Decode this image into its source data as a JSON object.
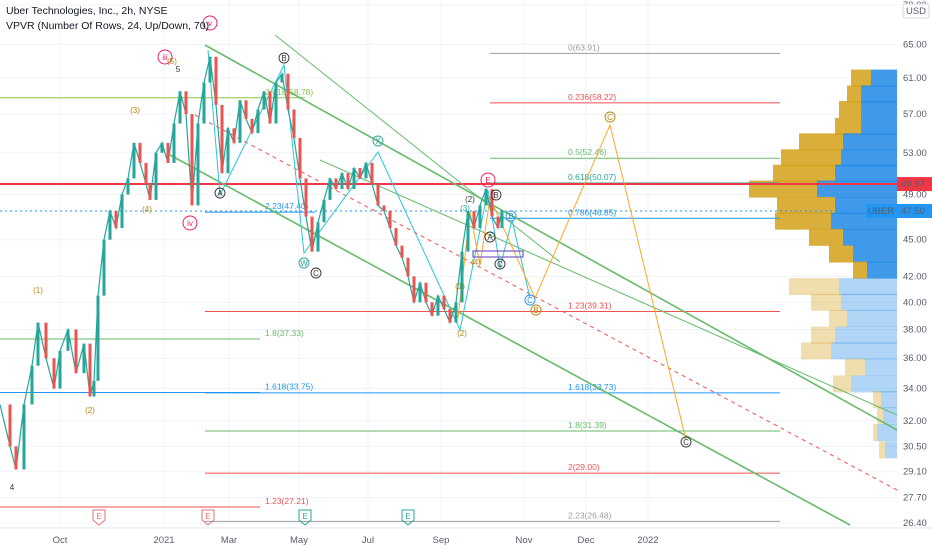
{
  "header": {
    "title": "Uber Technologies, Inc., 2h, NYSE",
    "indicator": "VPVR (Number Of Rows, 24, Up/Down, 70)"
  },
  "chart_data": {
    "type": "line",
    "symbol": "UBER",
    "currency": "USD",
    "x_ticks": [
      "Oct",
      "2021",
      "Mar",
      "May",
      "Jul",
      "Sep",
      "Nov",
      "Dec",
      "2022"
    ],
    "y_ticks": [
      70.0,
      65.0,
      61.0,
      57.0,
      53.0,
      49.0,
      45.0,
      42.0,
      40.0,
      38.0,
      36.0,
      34.0,
      32.0,
      30.5,
      29.1,
      27.7,
      26.4
    ],
    "ylim": [
      26.4,
      70.0
    ],
    "y_scale": "log",
    "last_price": {
      "label": "UBER",
      "value": "47.50"
    },
    "red_level": {
      "value": "49.97"
    },
    "price_path": [
      [
        0,
        33.0
      ],
      [
        10,
        30.5
      ],
      [
        16,
        29.2
      ],
      [
        24,
        33.0
      ],
      [
        32,
        35.5
      ],
      [
        38,
        38.5
      ],
      [
        46,
        36.0
      ],
      [
        54,
        34.0
      ],
      [
        60,
        36.5
      ],
      [
        68,
        38.0
      ],
      [
        76,
        35.0
      ],
      [
        84,
        37.0
      ],
      [
        90,
        33.5
      ],
      [
        94,
        34.5
      ],
      [
        98,
        40.5
      ],
      [
        104,
        45.0
      ],
      [
        110,
        47.5
      ],
      [
        116,
        46.0
      ],
      [
        122,
        49.0
      ],
      [
        128,
        50.5
      ],
      [
        134,
        54.0
      ],
      [
        140,
        52.0
      ],
      [
        146,
        50.0
      ],
      [
        150,
        48.5
      ],
      [
        156,
        53.0
      ],
      [
        162,
        54.0
      ],
      [
        168,
        52.0
      ],
      [
        174,
        56.0
      ],
      [
        180,
        59.5
      ],
      [
        186,
        57.0
      ],
      [
        192,
        48.0
      ],
      [
        198,
        56.0
      ],
      [
        204,
        60.5
      ],
      [
        210,
        63.5
      ],
      [
        216,
        58.0
      ],
      [
        222,
        51.0
      ],
      [
        228,
        55.5
      ],
      [
        234,
        54.0
      ],
      [
        240,
        58.5
      ],
      [
        246,
        56.5
      ],
      [
        252,
        55.0
      ],
      [
        258,
        57.5
      ],
      [
        264,
        59.5
      ],
      [
        270,
        56.0
      ],
      [
        276,
        60.5
      ],
      [
        282,
        61.5
      ],
      [
        288,
        57.5
      ],
      [
        294,
        54.5
      ],
      [
        300,
        50.5
      ],
      [
        306,
        47.0
      ],
      [
        312,
        44.0
      ],
      [
        318,
        46.5
      ],
      [
        324,
        48.5
      ],
      [
        330,
        50.5
      ],
      [
        336,
        49.5
      ],
      [
        342,
        51.0
      ],
      [
        348,
        49.5
      ],
      [
        354,
        51.5
      ],
      [
        360,
        50.5
      ],
      [
        366,
        52.0
      ],
      [
        372,
        50.0
      ],
      [
        378,
        48.0
      ],
      [
        384,
        47.5
      ],
      [
        390,
        46.0
      ],
      [
        396,
        44.5
      ],
      [
        402,
        43.5
      ],
      [
        408,
        42.0
      ],
      [
        414,
        40.0
      ],
      [
        420,
        41.5
      ],
      [
        426,
        40.0
      ],
      [
        432,
        39.0
      ],
      [
        438,
        40.5
      ],
      [
        444,
        39.5
      ],
      [
        450,
        38.5
      ],
      [
        456,
        40.0
      ],
      [
        462,
        44.0
      ],
      [
        468,
        47.5
      ],
      [
        474,
        46.0
      ],
      [
        480,
        48.0
      ],
      [
        486,
        49.5
      ],
      [
        492,
        47.0
      ],
      [
        498,
        46.0
      ],
      [
        502,
        47.5
      ]
    ],
    "vpvr": [
      {
        "price": 61.0,
        "up": 20,
        "down": 26
      },
      {
        "price": 59.2,
        "up": 14,
        "down": 36
      },
      {
        "price": 57.5,
        "up": 22,
        "down": 36
      },
      {
        "price": 55.7,
        "up": 26,
        "down": 36
      },
      {
        "price": 54.1,
        "up": 44,
        "down": 54
      },
      {
        "price": 52.5,
        "up": 60,
        "down": 56
      },
      {
        "price": 51.0,
        "up": 62,
        "down": 62
      },
      {
        "price": 49.5,
        "up": 68,
        "down": 80
      },
      {
        "price": 48.0,
        "up": 58,
        "down": 62
      },
      {
        "price": 46.6,
        "up": 56,
        "down": 66
      },
      {
        "price": 45.2,
        "up": 34,
        "down": 54
      },
      {
        "price": 43.8,
        "up": 24,
        "down": 44
      },
      {
        "price": 42.5,
        "up": 14,
        "down": 30
      },
      {
        "price": 41.2,
        "up": 50,
        "down": 58
      },
      {
        "price": 40.0,
        "up": 30,
        "down": 56
      },
      {
        "price": 38.8,
        "up": 18,
        "down": 50
      },
      {
        "price": 37.6,
        "up": 24,
        "down": 62
      },
      {
        "price": 36.5,
        "up": 30,
        "down": 66
      },
      {
        "price": 35.4,
        "up": 20,
        "down": 32
      },
      {
        "price": 34.3,
        "up": 18,
        "down": 46
      },
      {
        "price": 33.3,
        "up": 8,
        "down": 16
      },
      {
        "price": 32.3,
        "up": 6,
        "down": 14
      },
      {
        "price": 31.3,
        "up": 4,
        "down": 20
      },
      {
        "price": 30.3,
        "up": 6,
        "down": 12
      }
    ],
    "levels": [
      {
        "label": "0(63.91)",
        "price": 63.91,
        "x0": 490,
        "x1": 780,
        "color": "#9e9e9e",
        "lx": 568
      },
      {
        "label": "2.618(58.78)",
        "price": 58.78,
        "x0": 0,
        "x1": 305,
        "color": "#8bc34a",
        "lx": 265
      },
      {
        "label": "0.236(58.22)",
        "price": 58.22,
        "x0": 490,
        "x1": 780,
        "color": "#ef5350",
        "lx": 568
      },
      {
        "label": "0.5(52.46)",
        "price": 52.46,
        "x0": 490,
        "x1": 780,
        "color": "#66bb6a",
        "lx": 568
      },
      {
        "label": "0.618(50.07)",
        "price": 50.07,
        "x0": 490,
        "x1": 780,
        "color": "#26a69a",
        "lx": 568
      },
      {
        "label": "0.786(46.85)",
        "price": 46.85,
        "x0": 490,
        "x1": 780,
        "color": "#2196f3",
        "lx": 568
      },
      {
        "label": "2.23(47.40)",
        "price": 47.4,
        "x0": 205,
        "x1": 315,
        "color": "#2196f3",
        "lx": 265
      },
      {
        "label": "1.23(39.31)",
        "price": 39.31,
        "x0": 205,
        "x1": 780,
        "color": "#ef5350",
        "lx": 568
      },
      {
        "label": "1.8(37.33)",
        "price": 37.33,
        "x0": 0,
        "x1": 260,
        "color": "#66bb6a",
        "lx": 265
      },
      {
        "label": "1.618(33.75)",
        "price": 33.75,
        "x0": 0,
        "x1": 260,
        "color": "#2196f3",
        "lx": 265
      },
      {
        "label": "1.618(33.73)",
        "price": 33.73,
        "x0": 205,
        "x1": 780,
        "color": "#2196f3",
        "lx": 568
      },
      {
        "label": "1.8(31.39)",
        "price": 31.39,
        "x0": 205,
        "x1": 780,
        "color": "#66bb6a",
        "lx": 568
      },
      {
        "label": "2(29.00)",
        "price": 29.0,
        "x0": 205,
        "x1": 780,
        "color": "#ef5350",
        "lx": 568
      },
      {
        "label": "1.23(27.21)",
        "price": 27.21,
        "x0": 0,
        "x1": 260,
        "color": "#ef5350",
        "lx": 265
      },
      {
        "label": "2.23(26.48)",
        "price": 26.48,
        "x0": 205,
        "x1": 780,
        "color": "#9e9e9e",
        "lx": 568
      }
    ],
    "wave_labels": [
      {
        "t": "4",
        "x": 12,
        "y": 490,
        "c": "#333333"
      },
      {
        "t": "(1)",
        "x": 38,
        "y": 293,
        "c": "#b8860b"
      },
      {
        "t": "(2)",
        "x": 90,
        "y": 413,
        "c": "#b8860b"
      },
      {
        "t": "(3)",
        "x": 135,
        "y": 113,
        "c": "#b8860b"
      },
      {
        "t": "(4)",
        "x": 147,
        "y": 212,
        "c": "#b8860b"
      },
      {
        "t": "(5)",
        "x": 172,
        "y": 64,
        "c": "#b8860b"
      },
      {
        "t": "5",
        "x": 178,
        "y": 72,
        "c": "#333333"
      },
      {
        "t": "A",
        "x": 220,
        "y": 196,
        "c": "#333333"
      },
      {
        "t": "B",
        "x": 284,
        "y": 61,
        "c": "#333333"
      },
      {
        "t": "W",
        "x": 304,
        "y": 266,
        "c": "#26a69a"
      },
      {
        "t": "C",
        "x": 316,
        "y": 276,
        "c": "#333333"
      },
      {
        "t": "X",
        "x": 378,
        "y": 144,
        "c": "#26a69a"
      },
      {
        "t": "(1)",
        "x": 460,
        "y": 289,
        "c": "#b8860b"
      },
      {
        "t": "(2)",
        "x": 462,
        "y": 336,
        "c": "#b8860b"
      },
      {
        "t": "(3)",
        "x": 465,
        "y": 211,
        "c": "#26a69a"
      },
      {
        "t": "(2)",
        "x": 470,
        "y": 202,
        "c": "#333333"
      },
      {
        "t": "(4)",
        "x": 476,
        "y": 265,
        "c": "#b8860b"
      },
      {
        "t": "A",
        "x": 490,
        "y": 240,
        "c": "#333333"
      },
      {
        "t": "B",
        "x": 496,
        "y": 198,
        "c": "#333333"
      },
      {
        "t": "C",
        "x": 500,
        "y": 267,
        "c": "#333333"
      },
      {
        "t": "B",
        "x": 511,
        "y": 219,
        "c": "#2196f3"
      },
      {
        "t": "C",
        "x": 530,
        "y": 303,
        "c": "#2196f3"
      },
      {
        "t": "B",
        "x": 536,
        "y": 313,
        "c": "#b8860b"
      },
      {
        "t": "C",
        "x": 610,
        "y": 120,
        "c": "#b8860b"
      },
      {
        "t": "C",
        "x": 686,
        "y": 445,
        "c": "#333333"
      }
    ],
    "circle_labels": [
      {
        "t": "v",
        "x": 210,
        "y": 26,
        "c": "#e91e63"
      },
      {
        "t": "iii",
        "x": 165,
        "y": 60,
        "c": "#e91e63"
      },
      {
        "t": "iv",
        "x": 190,
        "y": 226,
        "c": "#e91e63"
      },
      {
        "t": "E",
        "x": 488,
        "y": 183,
        "c": "#e91e63"
      }
    ],
    "events": [
      {
        "t": "E",
        "x": 99,
        "c": "#e57373"
      },
      {
        "t": "E",
        "x": 208,
        "c": "#e57373"
      },
      {
        "t": "E",
        "x": 305,
        "c": "#26a69a"
      },
      {
        "t": "E",
        "x": 408,
        "c": "#26a69a"
      }
    ]
  }
}
